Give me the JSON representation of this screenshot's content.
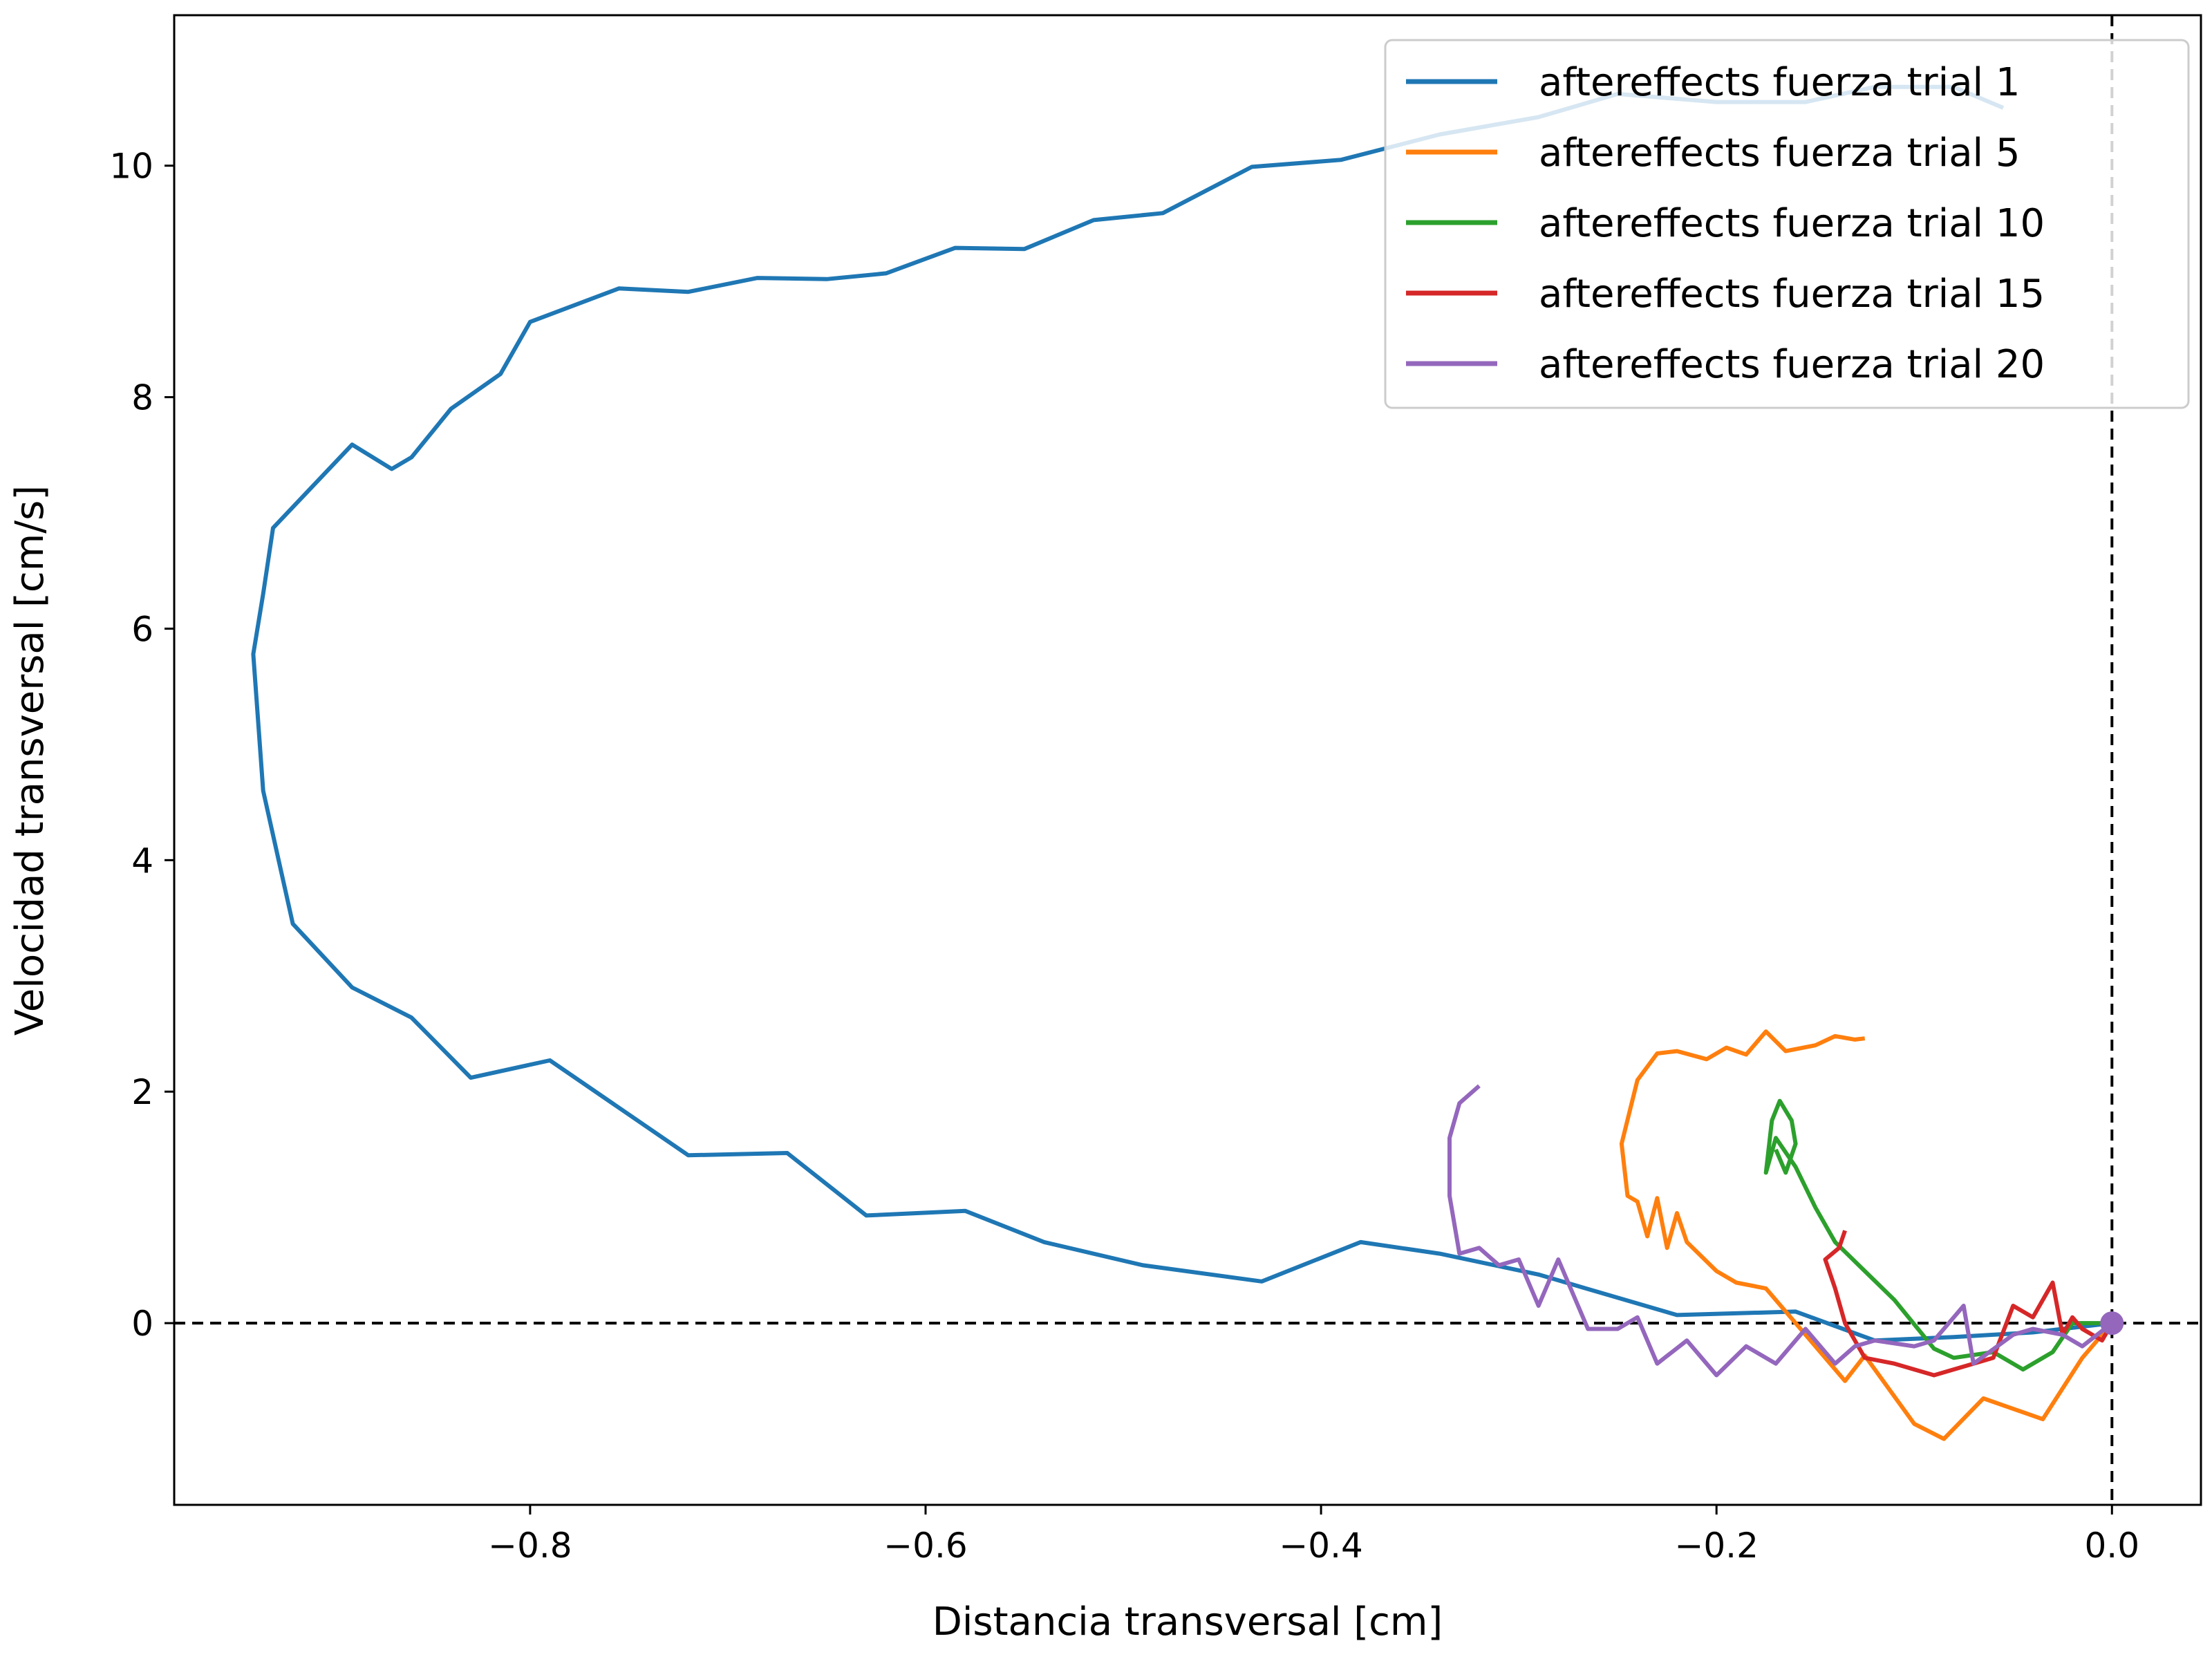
{
  "chart_data": {
    "type": "line",
    "title": "",
    "xlabel": "Distancia transversal [cm]",
    "ylabel": "Velocidad transversal [cm/s]",
    "xlim": [
      -0.98,
      0.045
    ],
    "ylim": [
      -1.57,
      11.3
    ],
    "xticks": [
      -0.8,
      -0.6,
      -0.4,
      -0.2,
      0.0
    ],
    "xtick_labels": [
      "−0.8",
      "−0.6",
      "−0.4",
      "−0.2",
      "0.0"
    ],
    "yticks": [
      0,
      2,
      4,
      6,
      8,
      10
    ],
    "ytick_labels": [
      "0",
      "2",
      "4",
      "6",
      "8",
      "10"
    ],
    "grid": false,
    "legend_position": "top-right",
    "reference_lines": [
      {
        "orientation": "horizontal",
        "value": 0,
        "style": "dashed",
        "color": "#000000"
      },
      {
        "orientation": "vertical",
        "value": 0,
        "style": "dashed",
        "color": "#000000"
      }
    ],
    "marker": {
      "x": 0.0,
      "y": 0.0,
      "color": "#9467bd"
    },
    "series": [
      {
        "name": "aftereffects fuerza trial 1",
        "color": "#1f77b4",
        "points": [
          [
            0.0,
            0.0
          ],
          [
            -0.04,
            -0.08
          ],
          [
            -0.08,
            -0.12
          ],
          [
            -0.12,
            -0.15
          ],
          [
            -0.16,
            0.1
          ],
          [
            -0.22,
            0.07
          ],
          [
            -0.29,
            0.42
          ],
          [
            -0.34,
            0.6
          ],
          [
            -0.38,
            0.7
          ],
          [
            -0.43,
            0.36
          ],
          [
            -0.49,
            0.5
          ],
          [
            -0.54,
            0.7
          ],
          [
            -0.58,
            0.97
          ],
          [
            -0.63,
            0.93
          ],
          [
            -0.67,
            1.47
          ],
          [
            -0.72,
            1.45
          ],
          [
            -0.79,
            2.27
          ],
          [
            -0.83,
            2.12
          ],
          [
            -0.86,
            2.64
          ],
          [
            -0.89,
            2.9
          ],
          [
            -0.92,
            3.45
          ],
          [
            -0.935,
            4.6
          ],
          [
            -0.94,
            5.78
          ],
          [
            -0.935,
            6.3
          ],
          [
            -0.93,
            6.87
          ],
          [
            -0.89,
            7.59
          ],
          [
            -0.87,
            7.38
          ],
          [
            -0.86,
            7.48
          ],
          [
            -0.84,
            7.9
          ],
          [
            -0.815,
            8.2
          ],
          [
            -0.8,
            8.65
          ],
          [
            -0.755,
            8.94
          ],
          [
            -0.72,
            8.91
          ],
          [
            -0.685,
            9.03
          ],
          [
            -0.65,
            9.02
          ],
          [
            -0.62,
            9.07
          ],
          [
            -0.585,
            9.29
          ],
          [
            -0.55,
            9.28
          ],
          [
            -0.515,
            9.53
          ],
          [
            -0.48,
            9.59
          ],
          [
            -0.435,
            9.99
          ],
          [
            -0.39,
            10.05
          ],
          [
            -0.34,
            10.27
          ],
          [
            -0.29,
            10.42
          ],
          [
            -0.25,
            10.62
          ],
          [
            -0.2,
            10.55
          ],
          [
            -0.155,
            10.55
          ],
          [
            -0.12,
            10.68
          ],
          [
            -0.08,
            10.68
          ],
          [
            -0.055,
            10.5
          ]
        ]
      },
      {
        "name": "aftereffects fuerza trial 5",
        "color": "#ff7f0e",
        "points": [
          [
            0.0,
            0.0
          ],
          [
            -0.015,
            -0.3
          ],
          [
            -0.035,
            -0.83
          ],
          [
            -0.065,
            -0.65
          ],
          [
            -0.085,
            -1.0
          ],
          [
            -0.1,
            -0.87
          ],
          [
            -0.125,
            -0.28
          ],
          [
            -0.135,
            -0.5
          ],
          [
            -0.15,
            -0.2
          ],
          [
            -0.16,
            0.0
          ],
          [
            -0.175,
            0.3
          ],
          [
            -0.19,
            0.35
          ],
          [
            -0.2,
            0.45
          ],
          [
            -0.215,
            0.7
          ],
          [
            -0.22,
            0.95
          ],
          [
            -0.225,
            0.65
          ],
          [
            -0.23,
            1.08
          ],
          [
            -0.235,
            0.75
          ],
          [
            -0.24,
            1.05
          ],
          [
            -0.245,
            1.1
          ],
          [
            -0.248,
            1.55
          ],
          [
            -0.24,
            2.1
          ],
          [
            -0.23,
            2.33
          ],
          [
            -0.22,
            2.35
          ],
          [
            -0.205,
            2.28
          ],
          [
            -0.195,
            2.38
          ],
          [
            -0.185,
            2.32
          ],
          [
            -0.175,
            2.52
          ],
          [
            -0.165,
            2.35
          ],
          [
            -0.15,
            2.4
          ],
          [
            -0.14,
            2.48
          ],
          [
            -0.13,
            2.45
          ],
          [
            -0.125,
            2.46
          ]
        ]
      },
      {
        "name": "aftereffects fuerza trial 10",
        "color": "#2ca02c",
        "points": [
          [
            0.0,
            0.0
          ],
          [
            -0.02,
            0.0
          ],
          [
            -0.03,
            -0.25
          ],
          [
            -0.045,
            -0.4
          ],
          [
            -0.06,
            -0.25
          ],
          [
            -0.08,
            -0.3
          ],
          [
            -0.09,
            -0.22
          ],
          [
            -0.11,
            0.2
          ],
          [
            -0.125,
            0.45
          ],
          [
            -0.14,
            0.7
          ],
          [
            -0.15,
            1.0
          ],
          [
            -0.16,
            1.35
          ],
          [
            -0.17,
            1.6
          ],
          [
            -0.175,
            1.3
          ],
          [
            -0.172,
            1.75
          ],
          [
            -0.168,
            1.92
          ],
          [
            -0.162,
            1.75
          ],
          [
            -0.16,
            1.55
          ],
          [
            -0.165,
            1.3
          ],
          [
            -0.17,
            1.5
          ]
        ]
      },
      {
        "name": "aftereffects fuerza trial 15",
        "color": "#d62728",
        "points": [
          [
            0.0,
            0.0
          ],
          [
            -0.005,
            -0.15
          ],
          [
            -0.015,
            -0.05
          ],
          [
            -0.02,
            0.05
          ],
          [
            -0.025,
            -0.1
          ],
          [
            -0.03,
            0.35
          ],
          [
            -0.04,
            0.05
          ],
          [
            -0.05,
            0.15
          ],
          [
            -0.06,
            -0.3
          ],
          [
            -0.07,
            -0.35
          ],
          [
            -0.09,
            -0.45
          ],
          [
            -0.1,
            -0.4
          ],
          [
            -0.11,
            -0.35
          ],
          [
            -0.125,
            -0.3
          ],
          [
            -0.135,
            0.0
          ],
          [
            -0.14,
            0.3
          ],
          [
            -0.145,
            0.55
          ],
          [
            -0.138,
            0.65
          ],
          [
            -0.135,
            0.8
          ]
        ]
      },
      {
        "name": "aftereffects fuerza trial 20",
        "color": "#9467bd",
        "points": [
          [
            0.0,
            0.0
          ],
          [
            -0.015,
            -0.2
          ],
          [
            -0.025,
            -0.1
          ],
          [
            -0.04,
            -0.05
          ],
          [
            -0.05,
            -0.1
          ],
          [
            -0.07,
            -0.35
          ],
          [
            -0.075,
            0.15
          ],
          [
            -0.09,
            -0.15
          ],
          [
            -0.1,
            -0.2
          ],
          [
            -0.12,
            -0.15
          ],
          [
            -0.13,
            -0.2
          ],
          [
            -0.14,
            -0.35
          ],
          [
            -0.155,
            -0.05
          ],
          [
            -0.17,
            -0.35
          ],
          [
            -0.185,
            -0.2
          ],
          [
            -0.2,
            -0.45
          ],
          [
            -0.215,
            -0.15
          ],
          [
            -0.23,
            -0.35
          ],
          [
            -0.24,
            0.05
          ],
          [
            -0.25,
            -0.05
          ],
          [
            -0.265,
            -0.05
          ],
          [
            -0.28,
            0.55
          ],
          [
            -0.29,
            0.15
          ],
          [
            -0.3,
            0.55
          ],
          [
            -0.31,
            0.5
          ],
          [
            -0.32,
            0.65
          ],
          [
            -0.33,
            0.6
          ],
          [
            -0.335,
            1.1
          ],
          [
            -0.335,
            1.6
          ],
          [
            -0.33,
            1.9
          ],
          [
            -0.32,
            2.05
          ]
        ]
      }
    ]
  }
}
